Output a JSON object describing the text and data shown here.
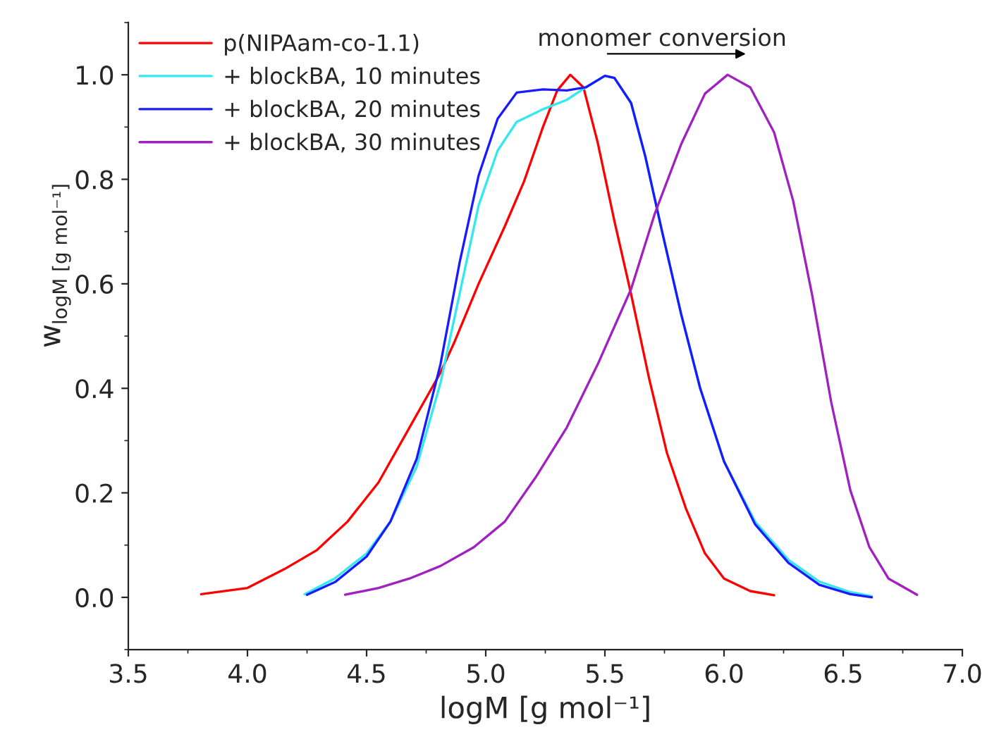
{
  "chart_data": {
    "type": "line",
    "xlabel": "logM [g mol⁻¹]",
    "ylabel": "w$_{logM [g mol⁻¹]}$",
    "annotations": [
      "monomer conversion"
    ],
    "xlim": [
      3.5,
      7.0
    ],
    "ylim": [
      -0.1,
      1.1
    ],
    "xticks": [
      3.5,
      {
        "value": 4,
        "label": "4.0"
      },
      4.5,
      {
        "value": 5,
        "label": "5.0"
      },
      5.5,
      {
        "value": 6,
        "label": "6.0"
      },
      6.5,
      {
        "value": 7,
        "label": "7.0"
      }
    ],
    "yticks": [
      {
        "value": 0,
        "label": "0.0"
      },
      0.2,
      0.4,
      0.6,
      0.8,
      {
        "value": 1,
        "label": "1.0"
      }
    ],
    "grid": false,
    "legend": "top left",
    "marker": "none",
    "line_style": "solid",
    "series": [
      {
        "name": "p(NIPAam-co-1.1)",
        "color": "#ff0000",
        "x": [
          3.806,
          4.0,
          4.155,
          4.29,
          4.42,
          4.55,
          4.68,
          4.81,
          4.87,
          4.97,
          5.08,
          5.16,
          5.24,
          5.3,
          5.355,
          5.41,
          5.47,
          5.54,
          5.61,
          5.685,
          5.76,
          5.84,
          5.92,
          6.0,
          6.11,
          6.21
        ],
        "values": [
          0.006,
          0.018,
          0.054,
          0.09,
          0.145,
          0.22,
          0.325,
          0.43,
          0.49,
          0.6,
          0.71,
          0.795,
          0.9,
          0.97,
          1.0,
          0.976,
          0.87,
          0.72,
          0.58,
          0.42,
          0.277,
          0.17,
          0.084,
          0.036,
          0.012,
          0.004
        ]
      },
      {
        "name": "+ blockBA, 10 minutes",
        "color": "#33e8f0",
        "x": [
          4.24,
          4.366,
          4.5,
          4.6,
          4.71,
          4.81,
          4.89,
          4.97,
          5.05,
          5.13,
          5.24,
          5.34,
          5.42,
          5.5,
          5.54,
          5.61,
          5.67,
          5.74,
          5.82,
          5.9,
          6.0,
          6.13,
          6.27,
          6.4,
          6.53,
          6.62
        ],
        "values": [
          0.006,
          0.036,
          0.084,
          0.145,
          0.25,
          0.41,
          0.58,
          0.75,
          0.855,
          0.91,
          0.934,
          0.952,
          0.976,
          0.998,
          0.994,
          0.946,
          0.843,
          0.7,
          0.542,
          0.4,
          0.26,
          0.145,
          0.072,
          0.03,
          0.01,
          0.002
        ]
      },
      {
        "name": "+ blockBA, 20 minutes",
        "color": "#1a1aff",
        "x": [
          4.25,
          4.37,
          4.5,
          4.6,
          4.71,
          4.81,
          4.89,
          4.97,
          5.05,
          5.13,
          5.24,
          5.34,
          5.42,
          5.5,
          5.54,
          5.61,
          5.67,
          5.74,
          5.82,
          5.9,
          6.0,
          6.13,
          6.27,
          6.4,
          6.53,
          6.62
        ],
        "values": [
          0.005,
          0.03,
          0.078,
          0.145,
          0.265,
          0.446,
          0.64,
          0.807,
          0.916,
          0.966,
          0.972,
          0.97,
          0.976,
          0.998,
          0.994,
          0.946,
          0.843,
          0.7,
          0.542,
          0.4,
          0.26,
          0.14,
          0.066,
          0.024,
          0.006,
          0.0
        ]
      },
      {
        "name": "+ blockBA, 30 minutes",
        "color": "#a020c0",
        "x": [
          4.41,
          4.55,
          4.68,
          4.81,
          4.95,
          5.08,
          5.21,
          5.34,
          5.47,
          5.61,
          5.71,
          5.82,
          5.92,
          6.015,
          6.11,
          6.21,
          6.29,
          6.37,
          6.45,
          6.53,
          6.61,
          6.69,
          6.81
        ],
        "values": [
          0.005,
          0.018,
          0.036,
          0.06,
          0.096,
          0.145,
          0.23,
          0.325,
          0.446,
          0.59,
          0.735,
          0.867,
          0.964,
          1.0,
          0.976,
          0.89,
          0.759,
          0.578,
          0.373,
          0.205,
          0.096,
          0.036,
          0.005
        ]
      }
    ]
  }
}
